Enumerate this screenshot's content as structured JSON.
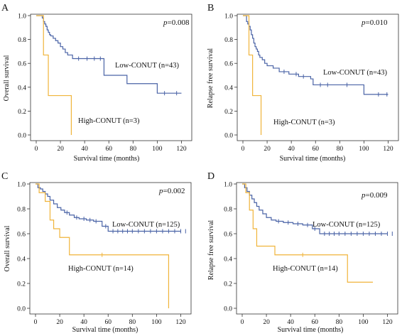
{
  "colors": {
    "low": "#4a63a6",
    "high": "#f0b43a",
    "axis": "#333333"
  },
  "chart_data": [
    {
      "type": "line",
      "panel": "A",
      "xlabel": "Survival time (months)",
      "ylabel": "Overall survival",
      "p_prefix": "p",
      "p_value": "=0.008",
      "xlim": [
        0,
        125
      ],
      "ylim": [
        0,
        1.0
      ],
      "xticks": [
        0,
        20,
        40,
        60,
        80,
        100,
        120
      ],
      "yticks": [
        0.0,
        0.2,
        0.4,
        0.6,
        0.8,
        1.0
      ],
      "series": [
        {
          "name": "Low-CONUT (n=43)",
          "color_key": "low",
          "x": [
            0,
            5,
            6,
            7,
            8,
            9,
            10,
            11,
            12,
            14,
            16,
            18,
            20,
            22,
            24,
            26,
            30,
            56,
            75,
            100,
            120
          ],
          "y": [
            1.0,
            0.98,
            0.95,
            0.93,
            0.91,
            0.88,
            0.86,
            0.84,
            0.83,
            0.81,
            0.79,
            0.77,
            0.74,
            0.72,
            0.69,
            0.67,
            0.64,
            0.5,
            0.43,
            0.35,
            0.35
          ],
          "censor_x": [
            35,
            42,
            48,
            53,
            106,
            116
          ]
        },
        {
          "name": "High-CONUT (n=3)",
          "color_key": "high",
          "x": [
            0,
            6,
            10,
            29
          ],
          "y": [
            1.0,
            0.67,
            0.33,
            0.0
          ],
          "censor_x": []
        }
      ]
    },
    {
      "type": "line",
      "panel": "B",
      "xlabel": "Survival time (months)",
      "ylabel": "Relapse free survival",
      "p_prefix": "p",
      "p_value": "=0.010",
      "xlim": [
        0,
        125
      ],
      "ylim": [
        0,
        1.0
      ],
      "xticks": [
        0,
        20,
        40,
        60,
        80,
        100,
        120
      ],
      "yticks": [
        0.0,
        0.2,
        0.4,
        0.6,
        0.8,
        1.0
      ],
      "series": [
        {
          "name": "Low-CONUT (n=43)",
          "color_key": "low",
          "x": [
            0,
            3,
            4,
            5,
            6,
            7,
            8,
            9,
            10,
            11,
            12,
            13,
            14,
            16,
            18,
            20,
            25,
            30,
            38,
            46,
            56,
            58,
            100,
            120
          ],
          "y": [
            1.0,
            0.95,
            0.93,
            0.91,
            0.88,
            0.84,
            0.81,
            0.77,
            0.74,
            0.72,
            0.7,
            0.67,
            0.65,
            0.63,
            0.6,
            0.58,
            0.56,
            0.53,
            0.51,
            0.49,
            0.47,
            0.42,
            0.34,
            0.34
          ],
          "censor_x": [
            34,
            44,
            50,
            64,
            70,
            86,
            112,
            119
          ]
        },
        {
          "name": "High-CONUT (n=3)",
          "color_key": "high",
          "x": [
            0,
            5,
            8,
            15
          ],
          "y": [
            1.0,
            0.67,
            0.33,
            0.0
          ],
          "censor_x": []
        }
      ]
    },
    {
      "type": "line",
      "panel": "C",
      "xlabel": "Survival time (months)",
      "ylabel": "Overall survival",
      "p_prefix": "p",
      "p_value": "=0.002",
      "xlim": [
        0,
        125
      ],
      "ylim": [
        0,
        1.0
      ],
      "xticks": [
        0,
        20,
        40,
        60,
        80,
        100,
        120
      ],
      "yticks": [
        0.0,
        0.2,
        0.4,
        0.6,
        0.8,
        1.0
      ],
      "series": [
        {
          "name": "Low-CONUT (n=125)",
          "color_key": "low",
          "x": [
            0,
            2,
            4,
            6,
            8,
            10,
            12,
            15,
            18,
            21,
            24,
            28,
            32,
            36,
            42,
            48,
            55,
            60,
            120
          ],
          "y": [
            1.0,
            0.97,
            0.96,
            0.94,
            0.92,
            0.9,
            0.87,
            0.84,
            0.81,
            0.79,
            0.77,
            0.75,
            0.73,
            0.72,
            0.71,
            0.7,
            0.66,
            0.62,
            0.62
          ],
          "censor_x": [
            26,
            34,
            40,
            45,
            50,
            58,
            64,
            68,
            72,
            76,
            80,
            85,
            90,
            95,
            100,
            105,
            110,
            115,
            120,
            124
          ]
        },
        {
          "name": "High-CONUT (n=14)",
          "color_key": "high",
          "x": [
            0,
            3,
            8,
            12,
            15,
            20,
            28,
            110
          ],
          "y": [
            1.0,
            0.93,
            0.86,
            0.71,
            0.64,
            0.57,
            0.43,
            0.0
          ],
          "censor_x": [
            55
          ]
        }
      ]
    },
    {
      "type": "line",
      "panel": "D",
      "xlabel": "Survival time (months)",
      "ylabel": "Relapse free survival",
      "p_prefix": "p",
      "p_value": "=0.009",
      "xlim": [
        0,
        125
      ],
      "ylim": [
        0,
        1.0
      ],
      "xticks": [
        0,
        20,
        40,
        60,
        80,
        100,
        120
      ],
      "yticks": [
        0.0,
        0.2,
        0.4,
        0.6,
        0.8,
        1.0
      ],
      "series": [
        {
          "name": "Low-CONUT (n=125)",
          "color_key": "low",
          "x": [
            0,
            2,
            4,
            6,
            8,
            10,
            12,
            14,
            17,
            20,
            24,
            28,
            34,
            42,
            50,
            58,
            64,
            120
          ],
          "y": [
            1.0,
            0.97,
            0.94,
            0.91,
            0.88,
            0.85,
            0.82,
            0.79,
            0.76,
            0.73,
            0.71,
            0.7,
            0.69,
            0.68,
            0.67,
            0.64,
            0.6,
            0.6
          ],
          "censor_x": [
            30,
            38,
            46,
            54,
            60,
            68,
            72,
            76,
            80,
            85,
            90,
            95,
            100,
            105,
            110,
            115,
            120,
            124
          ]
        },
        {
          "name": "High-CONUT (n=14)",
          "color_key": "high",
          "x": [
            0,
            3,
            6,
            9,
            12,
            27,
            87,
            108
          ],
          "y": [
            1.0,
            0.93,
            0.79,
            0.64,
            0.5,
            0.43,
            0.21,
            0.21
          ],
          "censor_x": [
            50
          ]
        }
      ]
    }
  ]
}
